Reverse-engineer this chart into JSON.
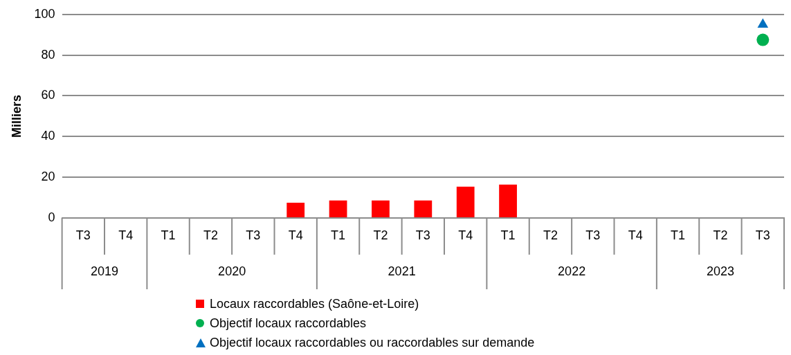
{
  "chart_data": {
    "type": "bar",
    "ylabel": "Milliers",
    "categories": [
      "T3",
      "T4",
      "T1",
      "T2",
      "T3",
      "T4",
      "T1",
      "T2",
      "T3",
      "T4",
      "T1",
      "T2",
      "T3",
      "T4",
      "T1",
      "T2",
      "T3"
    ],
    "annotations": [
      "2019",
      "2020",
      "2021",
      "2022",
      "2023"
    ],
    "series": [
      {
        "name": "Locaux raccordables (Saône-et-Loire)",
        "color": "#ff0000",
        "values": [
          null,
          null,
          null,
          null,
          null,
          7.5,
          8.6,
          8.6,
          8.6,
          15.4,
          16.4,
          null,
          null,
          null,
          null,
          null,
          null
        ]
      },
      {
        "name": "Objectif locaux raccordables",
        "type": "scatter",
        "marker": "circle",
        "color": "#00b050",
        "values": [
          null,
          null,
          null,
          null,
          null,
          null,
          null,
          null,
          null,
          null,
          null,
          null,
          null,
          null,
          null,
          null,
          87.5
        ]
      },
      {
        "name": "Objectif locaux raccordables ou raccordables sur demande",
        "type": "scatter",
        "marker": "triangle",
        "color": "#0070c0",
        "values": [
          null,
          null,
          null,
          null,
          null,
          null,
          null,
          null,
          null,
          null,
          null,
          null,
          null,
          null,
          null,
          null,
          95
        ]
      }
    ],
    "ylim": [
      0,
      100
    ],
    "yticks": [
      0,
      20,
      40,
      60,
      80,
      100
    ],
    "grid": "y",
    "legend": "bottom"
  }
}
